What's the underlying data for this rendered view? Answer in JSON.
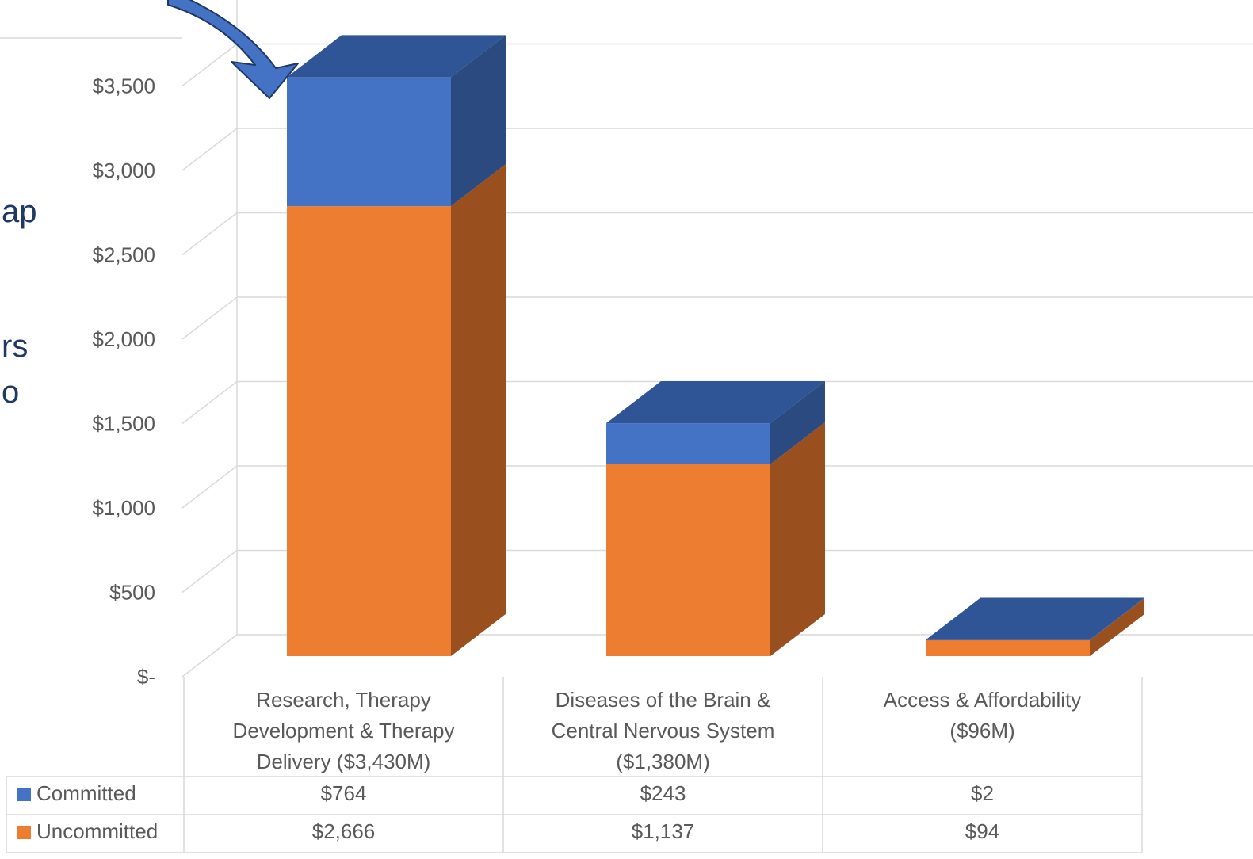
{
  "colors": {
    "committed_front": "#4472c4",
    "committed_top": "#2f5597",
    "committed_side": "#2b4a80",
    "uncommitted_front": "#ed7d31",
    "uncommitted_side": "#9a4f1e",
    "arrow": "#4472c4",
    "grid": "#d9d9d9",
    "side_text": "#1f3864"
  },
  "side_text_fragments": [
    "ap",
    "rs",
    "o"
  ],
  "chart_data": {
    "type": "bar",
    "stacked": true,
    "three_d": true,
    "categories": [
      [
        "Research, Therapy",
        "Development & Therapy",
        "Delivery ($3,430M)"
      ],
      [
        "Diseases of the Brain &",
        "Central Nervous System",
        "($1,380M)"
      ],
      [
        "Access & Affordability",
        "($96M)"
      ]
    ],
    "series": [
      {
        "name": "Uncommitted",
        "values": [
          2666,
          1137,
          94
        ],
        "value_labels": [
          "$2,666",
          "$1,137",
          "$94"
        ]
      },
      {
        "name": "Committed",
        "values": [
          764,
          243,
          2
        ],
        "value_labels": [
          "$764",
          "$243",
          "$2"
        ]
      }
    ],
    "y_ticks": [
      0,
      500,
      1000,
      1500,
      2000,
      2500,
      3000,
      3500
    ],
    "y_tick_labels": [
      "$-",
      "$500",
      "$1,000",
      "$1,500",
      "$2,000",
      "$2,500",
      "$3,000",
      "$3,500"
    ],
    "ylim": [
      0,
      3500
    ],
    "grid": true,
    "legend": "data-table-left",
    "annotation": "arrow pointing to top of first bar"
  }
}
